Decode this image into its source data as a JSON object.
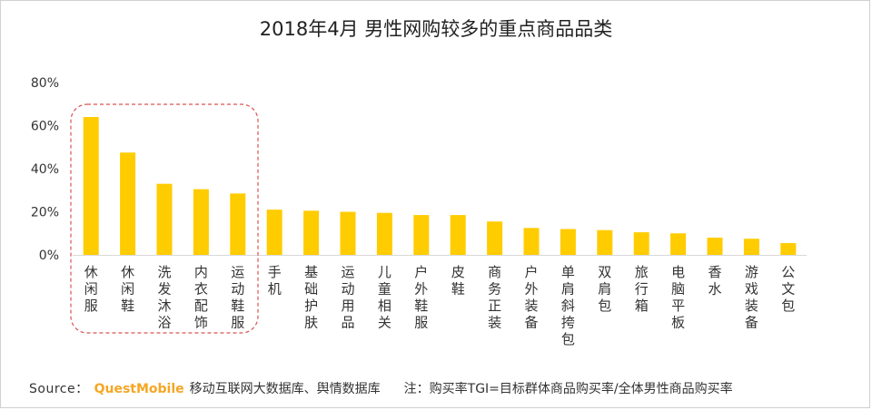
{
  "title": "2018年4月 男性网购较多的重点商品品类",
  "chart_data": {
    "type": "bar",
    "title": "2018年4月 男性网购较多的重点商品品类",
    "categories": [
      "休闲服",
      "休闲鞋",
      "洗发沐浴",
      "内衣配饰",
      "运动鞋服",
      "手机",
      "基础护肤",
      "运动用品",
      "儿童相关",
      "户外鞋服",
      "皮鞋",
      "商务正装",
      "户外装备",
      "单肩斜挎包",
      "双肩包",
      "旅行箱",
      "电脑平板",
      "香水",
      "游戏装备",
      "公文包"
    ],
    "values": [
      64,
      47.5,
      33,
      30.5,
      28.5,
      21,
      20.5,
      20,
      19.5,
      18.5,
      18.5,
      15.5,
      12.5,
      12,
      11.5,
      10.5,
      10,
      8,
      7.5,
      5.5
    ],
    "yticks": [
      "0%",
      "20%",
      "40%",
      "60%",
      "80%"
    ],
    "ylim": [
      0,
      80
    ],
    "grid": false,
    "bar_color": "#ffcc00",
    "highlight_color": "#d9534f",
    "highlighted_categories": [
      "休闲服",
      "休闲鞋",
      "洗发沐浴",
      "内衣配饰",
      "运动鞋服"
    ]
  },
  "source": {
    "prefix": "Source：",
    "brand": "QuestMobile",
    "text": "移动互联网大数据库、舆情数据库",
    "note": "注：购买率TGI=目标群体商品购买率/全体男性商品购买率"
  }
}
